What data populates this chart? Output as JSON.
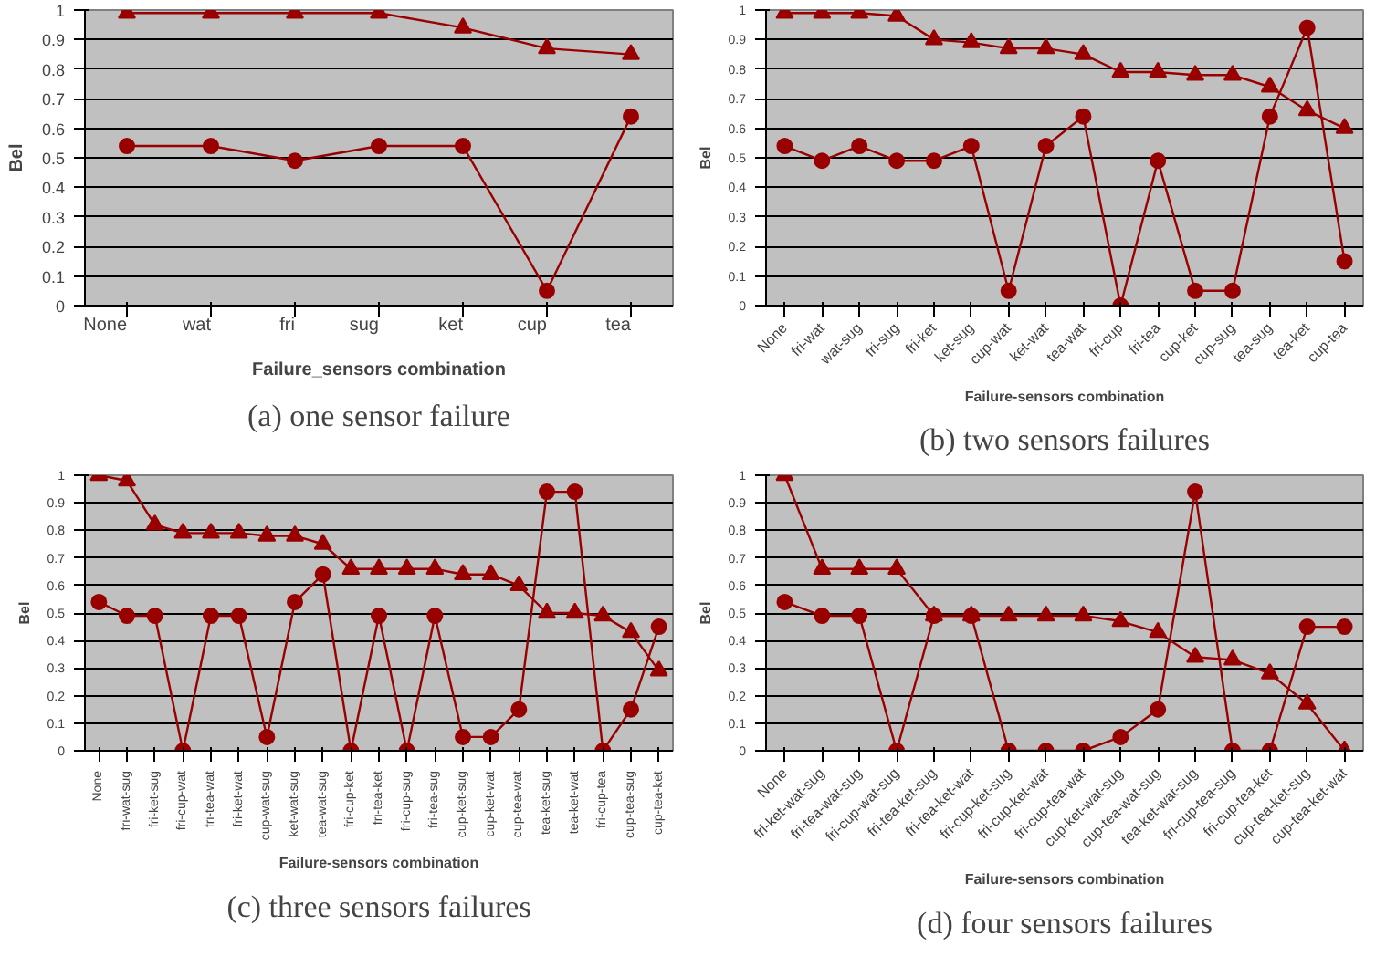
{
  "chart_data": [
    {
      "type": "line",
      "annotations": [
        "(a) one sensor failure"
      ],
      "xlabel": "Failure_sensors combination",
      "ylabel": "Bel",
      "categories": [
        "None",
        "wat",
        "fri",
        "sug",
        "ket",
        "cup",
        "tea"
      ],
      "ylim": [
        0,
        1
      ],
      "yticks": [
        0,
        0.1,
        0.2,
        0.3,
        0.4,
        0.5,
        0.6,
        0.7,
        0.8,
        0.9,
        1
      ],
      "grid": "y",
      "series": [
        {
          "color": "#990000",
          "marker": "triangle",
          "values": [
            0.99,
            0.99,
            0.99,
            0.99,
            0.94,
            0.87,
            0.85
          ]
        },
        {
          "color": "#990000",
          "marker": "circle",
          "values": [
            0.54,
            0.54,
            0.49,
            0.54,
            0.54,
            0.05,
            0.64
          ]
        }
      ]
    },
    {
      "type": "line",
      "annotations": [
        "(b) two sensors failures"
      ],
      "xlabel": "Failure-sensors combination",
      "ylabel": "Bel",
      "categories": [
        "None",
        "fri-wat",
        "wat-sug",
        "fri-sug",
        "fri-ket",
        "ket-sug",
        "cup-wat",
        "ket-wat",
        "tea-wat",
        "fri-cup",
        "fri-tea",
        "cup-ket",
        "cup-sug",
        "tea-sug",
        "tea-ket",
        "cup-tea"
      ],
      "ylim": [
        0,
        1
      ],
      "yticks": [
        0,
        0.1,
        0.2,
        0.3,
        0.4,
        0.5,
        0.6,
        0.7,
        0.8,
        0.9,
        1
      ],
      "grid": "y",
      "series": [
        {
          "color": "#990000",
          "marker": "triangle",
          "values": [
            0.99,
            0.99,
            0.99,
            0.98,
            0.9,
            0.89,
            0.87,
            0.87,
            0.85,
            0.79,
            0.79,
            0.78,
            0.78,
            0.74,
            0.66,
            0.6
          ]
        },
        {
          "color": "#990000",
          "marker": "circle",
          "values": [
            0.54,
            0.49,
            0.54,
            0.49,
            0.49,
            0.54,
            0.05,
            0.54,
            0.64,
            0,
            0.49,
            0.05,
            0.05,
            0.64,
            0.94,
            0.15
          ]
        }
      ]
    },
    {
      "type": "line",
      "annotations": [
        "(c) three sensors failures"
      ],
      "xlabel": "Failure-sensors combination",
      "ylabel": "Bel",
      "categories": [
        "None",
        "fri-wat-sug",
        "fri-ket-sug",
        "fri-cup-wat",
        "fri-tea-wat",
        "fri-ket-wat",
        "cup-wat-sug",
        "ket-wat-sug",
        "tea-wat-sug",
        "fri-cup-ket",
        "fri-tea-ket",
        "fri-cup-sug",
        "fri-tea-sug",
        "cup-ket-sug",
        "cup-ket-wat",
        "cup-tea-wat",
        "tea-ket-sug",
        "tea-ket-wat",
        "fri-cup-tea",
        "cup-tea-sug",
        "cup-tea-ket"
      ],
      "ylim": [
        0,
        1
      ],
      "yticks": [
        0,
        0.1,
        0.2,
        0.3,
        0.4,
        0.5,
        0.6,
        0.7,
        0.8,
        0.9,
        1
      ],
      "grid": "y",
      "series": [
        {
          "color": "#990000",
          "marker": "triangle",
          "values": [
            1,
            0.98,
            0.82,
            0.79,
            0.79,
            0.79,
            0.78,
            0.78,
            0.75,
            0.66,
            0.66,
            0.66,
            0.66,
            0.64,
            0.64,
            0.6,
            0.5,
            0.5,
            0.49,
            0.43,
            0.29
          ]
        },
        {
          "color": "#990000",
          "marker": "circle",
          "values": [
            0.54,
            0.49,
            0.49,
            0,
            0.49,
            0.49,
            0.05,
            0.54,
            0.64,
            0,
            0.49,
            0,
            0.49,
            0.05,
            0.05,
            0.15,
            0.94,
            0.94,
            0,
            0.15,
            0.45
          ]
        }
      ]
    },
    {
      "type": "line",
      "annotations": [
        "(d) four sensors failures"
      ],
      "xlabel": "Failure-sensors combination",
      "ylabel": "Bel",
      "categories": [
        "None",
        "fri-ket-wat-sug",
        "fri-tea-wat-sug",
        "fri-cup-wat-sug",
        "fri-tea-ket-sug",
        "fri-tea-ket-wat",
        "fri-cup-ket-sug",
        "fri-cup-ket-wat",
        "fri-cup-tea-wat",
        "cup-ket-wat-sug",
        "cup-tea-wat-sug",
        "tea-ket-wat-sug",
        "fri-cup-tea-sug",
        "fri-cup-tea-ket",
        "cup-tea-ket-sug",
        "cup-tea-ket-wat"
      ],
      "ylim": [
        0,
        1
      ],
      "yticks": [
        0,
        0.1,
        0.2,
        0.3,
        0.4,
        0.5,
        0.6,
        0.7,
        0.8,
        0.9,
        1
      ],
      "grid": "y",
      "series": [
        {
          "color": "#990000",
          "marker": "triangle",
          "values": [
            1,
            0.66,
            0.66,
            0.66,
            0.49,
            0.49,
            0.49,
            0.49,
            0.49,
            0.47,
            0.43,
            0.34,
            0.33,
            0.28,
            0.17,
            0
          ]
        },
        {
          "color": "#990000",
          "marker": "circle",
          "values": [
            0.54,
            0.49,
            0.49,
            0,
            0.49,
            0.49,
            0,
            0,
            0,
            0.05,
            0.15,
            0.94,
            0,
            0,
            0.45,
            0.45
          ]
        }
      ]
    }
  ]
}
